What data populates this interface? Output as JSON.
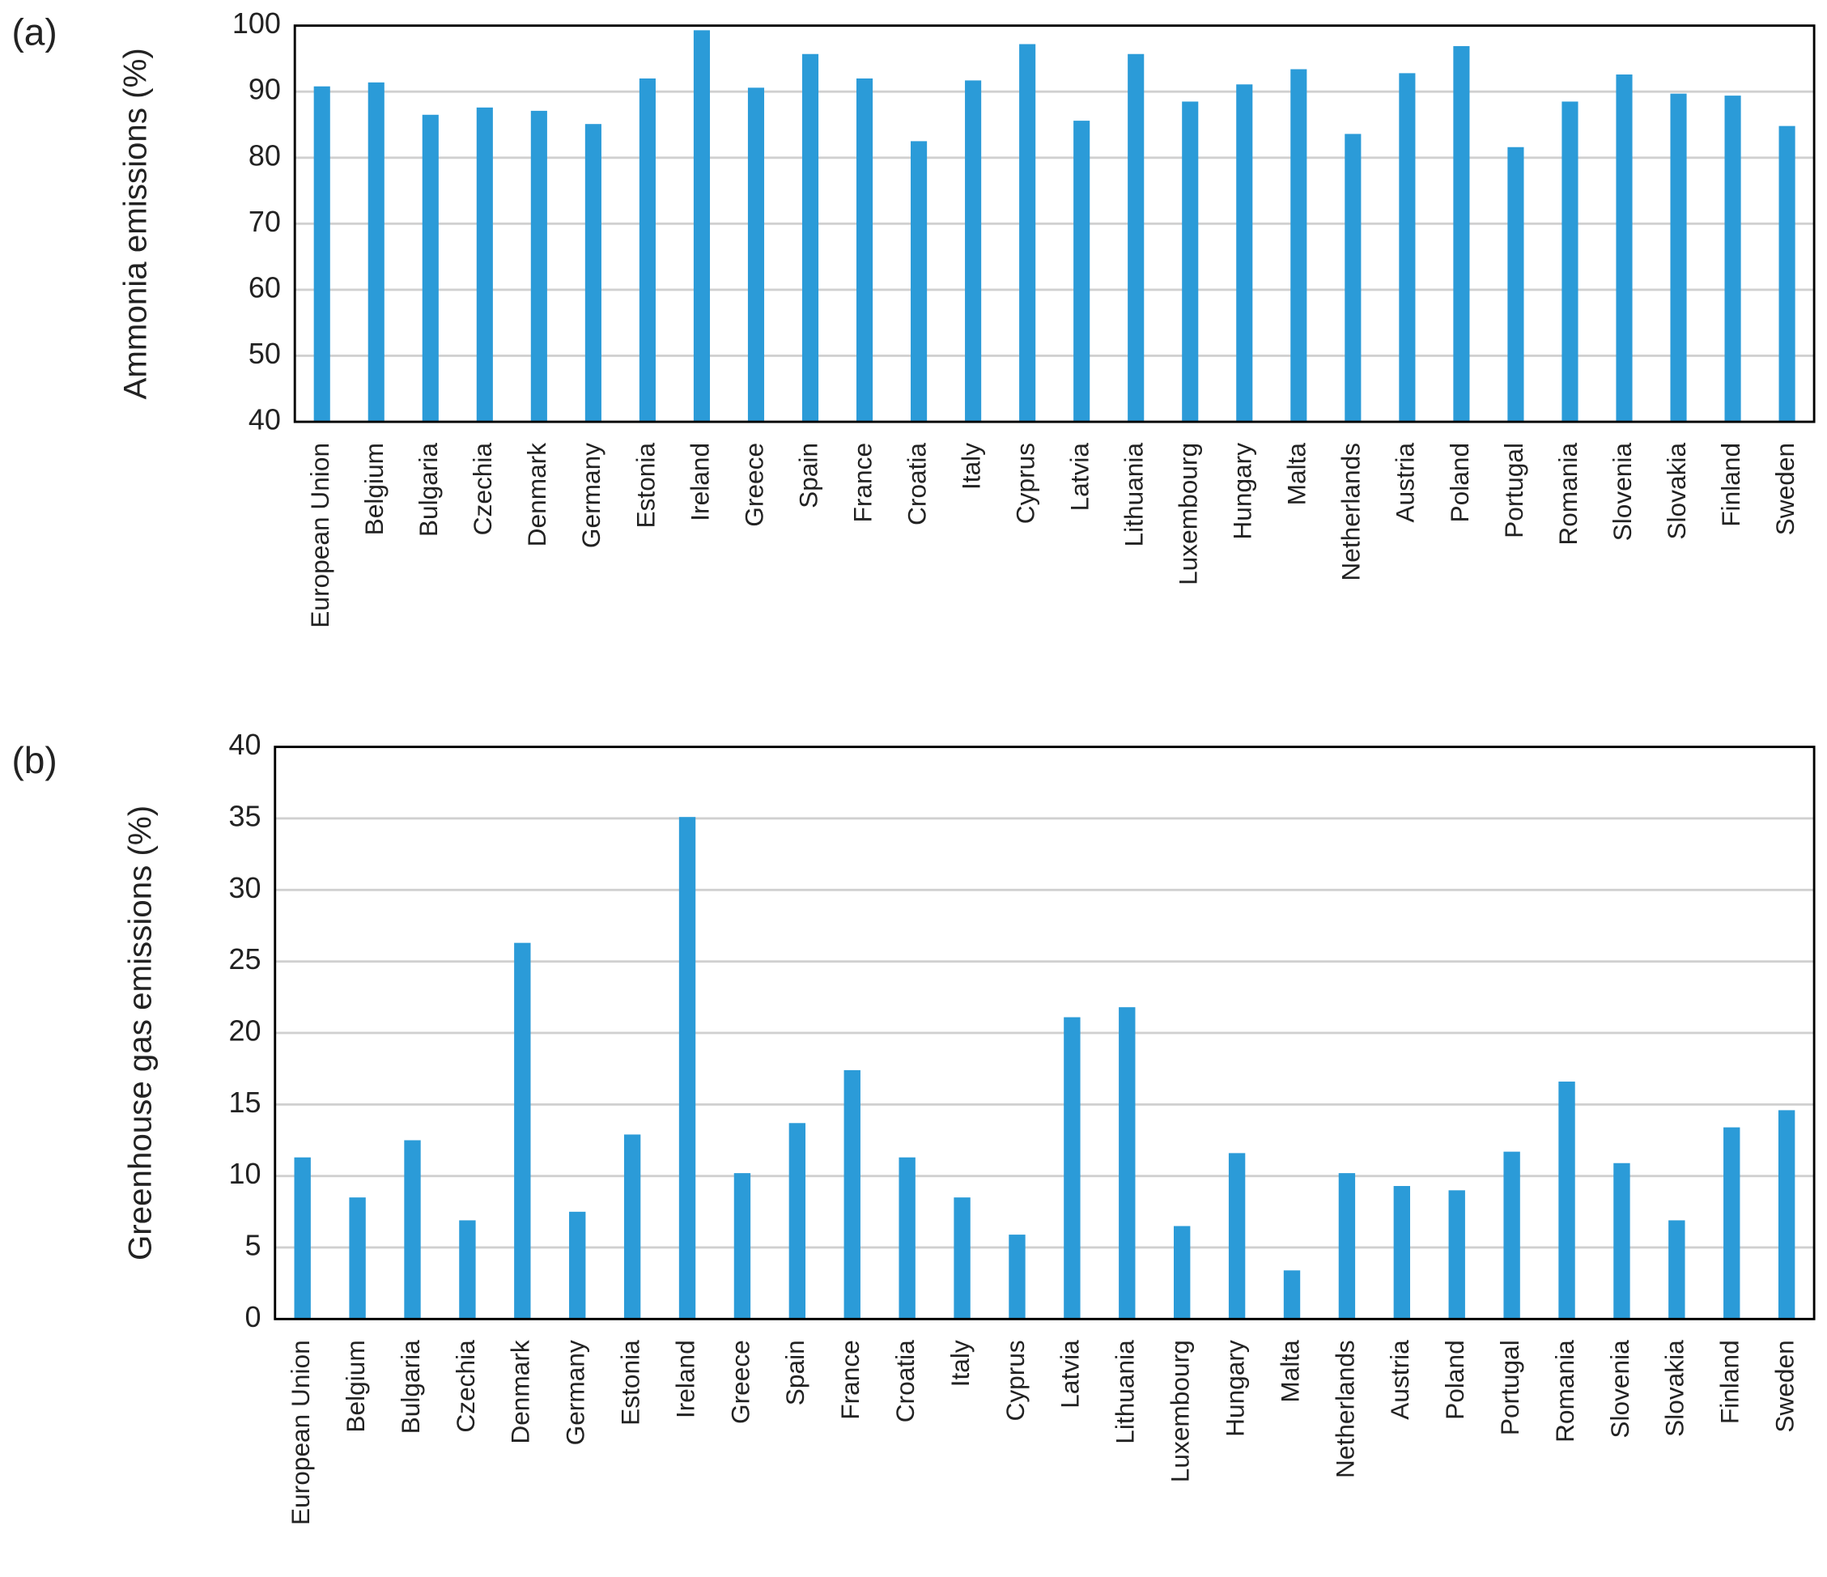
{
  "chart_data": [
    {
      "type": "bar",
      "panel_label": "(a)",
      "y_label": "Ammonia emissions (%)",
      "categories": [
        "European Union",
        "Belgium",
        "Bulgaria",
        "Czechia",
        "Denmark",
        "Germany",
        "Estonia",
        "Ireland",
        "Greece",
        "Spain",
        "France",
        "Croatia",
        "Italy",
        "Cyprus",
        "Latvia",
        "Lithuania",
        "Luxembourg",
        "Hungary",
        "Malta",
        "Netherlands",
        "Austria",
        "Poland",
        "Portugal",
        "Romania",
        "Slovenia",
        "Slovakia",
        "Finland",
        "Sweden"
      ],
      "values": [
        90.8,
        91.4,
        86.5,
        87.6,
        87.1,
        85.1,
        92.0,
        99.3,
        90.6,
        95.7,
        92.0,
        82.5,
        91.7,
        97.2,
        85.6,
        95.7,
        88.5,
        91.1,
        93.4,
        83.6,
        92.8,
        96.9,
        81.6,
        88.5,
        92.6,
        89.7,
        89.4,
        84.8
      ],
      "color": "#2b9bd8",
      "ylim": [
        40,
        100
      ],
      "yticks": [
        40,
        50,
        60,
        70,
        80,
        90,
        100
      ],
      "grid": true
    },
    {
      "type": "bar",
      "panel_label": "(b)",
      "y_label": "Greenhouse gas emissions (%)",
      "categories": [
        "European Union",
        "Belgium",
        "Bulgaria",
        "Czechia",
        "Denmark",
        "Germany",
        "Estonia",
        "Ireland",
        "Greece",
        "Spain",
        "France",
        "Croatia",
        "Italy",
        "Cyprus",
        "Latvia",
        "Lithuania",
        "Luxembourg",
        "Hungary",
        "Malta",
        "Netherlands",
        "Austria",
        "Poland",
        "Portugal",
        "Romania",
        "Slovenia",
        "Slovakia",
        "Finland",
        "Sweden"
      ],
      "values": [
        11.3,
        8.5,
        12.5,
        6.9,
        26.3,
        7.5,
        12.9,
        35.1,
        10.2,
        13.7,
        17.4,
        11.3,
        8.5,
        5.9,
        21.1,
        21.8,
        6.5,
        11.6,
        3.4,
        10.2,
        9.3,
        9.0,
        11.7,
        16.6,
        10.9,
        6.9,
        13.4,
        14.6
      ],
      "color": "#2b9bd8",
      "ylim": [
        0,
        40
      ],
      "yticks": [
        0,
        5,
        10,
        15,
        20,
        25,
        30,
        35,
        40
      ],
      "grid": true
    }
  ]
}
